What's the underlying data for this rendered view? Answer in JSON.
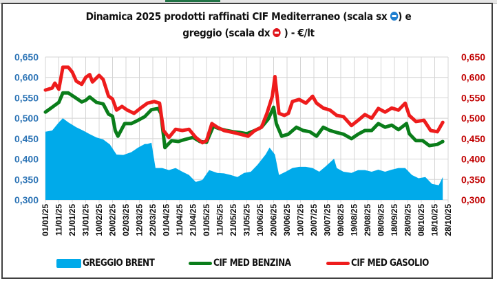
{
  "chart_data": {
    "type": "area+line",
    "title_line1": "Dinamica 2025 prodotti raffinati CIF Mediterraneo (scala sx",
    "title_line1_end": ") e",
    "title_line2": "greggio (scala dx",
    "title_line2_end": ") - €/lt",
    "title_icons": [
      "left-arrow-circle-icon",
      "right-arrow-circle-icon"
    ],
    "y_left": {
      "ticks": [
        "0,300",
        "0,350",
        "0,400",
        "0,450",
        "0,500",
        "0,550",
        "0,600",
        "0,650"
      ],
      "range": [
        0.3,
        0.65
      ],
      "color": "#2e75b6"
    },
    "y_right": {
      "ticks": [
        "0,300",
        "0,350",
        "0,400",
        "0,450",
        "0,500",
        "0,550",
        "0,600",
        "0,650"
      ],
      "range": [
        0.3,
        0.65
      ],
      "color": "#c00000"
    },
    "x_ticks": [
      "01/01/25",
      "11/01/25",
      "21/01/25",
      "31/01/25",
      "10/02/25",
      "20/02/25",
      "02/03/25",
      "12/03/25",
      "22/03/25",
      "01/04/25",
      "11/04/25",
      "21/04/25",
      "01/05/25",
      "11/05/25",
      "21/05/25",
      "31/05/25",
      "10/06/25",
      "20/06/25",
      "30/06/25",
      "10/07/25",
      "20/07/25",
      "30/07/25",
      "09/08/25",
      "19/08/25",
      "29/08/25",
      "08/09/25",
      "18/09/25",
      "28/09/25",
      "08/10/25",
      "18/10/25",
      "28/10/25"
    ],
    "x_range_days": [
      0,
      300
    ],
    "grid": true,
    "legend_position": "bottom",
    "series": [
      {
        "name": "GREGGIO BRENT",
        "kind": "area",
        "axis": "right",
        "color": "#00aaea",
        "points": [
          [
            0,
            0.467
          ],
          [
            5,
            0.47
          ],
          [
            10,
            0.49
          ],
          [
            13,
            0.5
          ],
          [
            17,
            0.49
          ],
          [
            23,
            0.478
          ],
          [
            28,
            0.47
          ],
          [
            33,
            0.461
          ],
          [
            38,
            0.453
          ],
          [
            43,
            0.448
          ],
          [
            48,
            0.436
          ],
          [
            53,
            0.411
          ],
          [
            58,
            0.41
          ],
          [
            64,
            0.417
          ],
          [
            69,
            0.428
          ],
          [
            74,
            0.437
          ],
          [
            76,
            0.437
          ],
          [
            79,
            0.44
          ],
          [
            82,
            0.378
          ],
          [
            87,
            0.378
          ],
          [
            92,
            0.373
          ],
          [
            97,
            0.378
          ],
          [
            102,
            0.369
          ],
          [
            107,
            0.361
          ],
          [
            112,
            0.344
          ],
          [
            117,
            0.349
          ],
          [
            122,
            0.373
          ],
          [
            128,
            0.366
          ],
          [
            133,
            0.365
          ],
          [
            138,
            0.361
          ],
          [
            143,
            0.356
          ],
          [
            148,
            0.366
          ],
          [
            153,
            0.369
          ],
          [
            158,
            0.386
          ],
          [
            164,
            0.411
          ],
          [
            167,
            0.428
          ],
          [
            171,
            0.411
          ],
          [
            174,
            0.361
          ],
          [
            179,
            0.369
          ],
          [
            184,
            0.378
          ],
          [
            189,
            0.381
          ],
          [
            194,
            0.381
          ],
          [
            199,
            0.378
          ],
          [
            204,
            0.369
          ],
          [
            209,
            0.383
          ],
          [
            215,
            0.401
          ],
          [
            217,
            0.378
          ],
          [
            222,
            0.369
          ],
          [
            228,
            0.366
          ],
          [
            233,
            0.373
          ],
          [
            238,
            0.373
          ],
          [
            243,
            0.369
          ],
          [
            248,
            0.374
          ],
          [
            253,
            0.369
          ],
          [
            258,
            0.374
          ],
          [
            263,
            0.378
          ],
          [
            268,
            0.378
          ],
          [
            273,
            0.361
          ],
          [
            278,
            0.353
          ],
          [
            283,
            0.356
          ],
          [
            288,
            0.339
          ],
          [
            293,
            0.336
          ],
          [
            296,
            0.356
          ]
        ]
      },
      {
        "name": "CIF MED BENZINA",
        "kind": "line",
        "axis": "left",
        "color": "#0a7d1a",
        "points": [
          [
            0,
            0.515
          ],
          [
            5,
            0.527
          ],
          [
            10,
            0.539
          ],
          [
            13,
            0.562
          ],
          [
            17,
            0.562
          ],
          [
            23,
            0.549
          ],
          [
            27,
            0.54
          ],
          [
            30,
            0.544
          ],
          [
            33,
            0.552
          ],
          [
            38,
            0.539
          ],
          [
            43,
            0.535
          ],
          [
            47,
            0.51
          ],
          [
            50,
            0.505
          ],
          [
            52,
            0.47
          ],
          [
            54,
            0.456
          ],
          [
            59,
            0.487
          ],
          [
            64,
            0.487
          ],
          [
            69,
            0.495
          ],
          [
            74,
            0.504
          ],
          [
            79,
            0.521
          ],
          [
            84,
            0.524
          ],
          [
            86,
            0.512
          ],
          [
            89,
            0.428
          ],
          [
            94,
            0.445
          ],
          [
            99,
            0.443
          ],
          [
            104,
            0.448
          ],
          [
            110,
            0.453
          ],
          [
            115,
            0.443
          ],
          [
            120,
            0.441
          ],
          [
            125,
            0.48
          ],
          [
            130,
            0.474
          ],
          [
            135,
            0.47
          ],
          [
            140,
            0.467
          ],
          [
            145,
            0.465
          ],
          [
            150,
            0.462
          ],
          [
            156,
            0.47
          ],
          [
            161,
            0.478
          ],
          [
            166,
            0.498
          ],
          [
            170,
            0.527
          ],
          [
            172,
            0.487
          ],
          [
            176,
            0.456
          ],
          [
            181,
            0.461
          ],
          [
            187,
            0.478
          ],
          [
            192,
            0.47
          ],
          [
            197,
            0.467
          ],
          [
            202,
            0.456
          ],
          [
            207,
            0.478
          ],
          [
            212,
            0.47
          ],
          [
            217,
            0.465
          ],
          [
            222,
            0.461
          ],
          [
            228,
            0.45
          ],
          [
            233,
            0.461
          ],
          [
            238,
            0.47
          ],
          [
            243,
            0.47
          ],
          [
            248,
            0.487
          ],
          [
            253,
            0.478
          ],
          [
            258,
            0.483
          ],
          [
            263,
            0.472
          ],
          [
            269,
            0.487
          ],
          [
            271,
            0.462
          ],
          [
            276,
            0.445
          ],
          [
            281,
            0.445
          ],
          [
            286,
            0.433
          ],
          [
            292,
            0.436
          ],
          [
            296,
            0.443
          ]
        ]
      },
      {
        "name": "CIF MED GASOLIO",
        "kind": "line",
        "axis": "right",
        "color": "#ee1c1c",
        "points": [
          [
            0,
            0.569
          ],
          [
            5,
            0.574
          ],
          [
            7,
            0.586
          ],
          [
            10,
            0.571
          ],
          [
            13,
            0.625
          ],
          [
            17,
            0.625
          ],
          [
            20,
            0.613
          ],
          [
            23,
            0.591
          ],
          [
            27,
            0.583
          ],
          [
            30,
            0.6
          ],
          [
            33,
            0.607
          ],
          [
            35,
            0.589
          ],
          [
            40,
            0.605
          ],
          [
            43,
            0.595
          ],
          [
            47,
            0.554
          ],
          [
            50,
            0.547
          ],
          [
            53,
            0.52
          ],
          [
            57,
            0.529
          ],
          [
            61,
            0.52
          ],
          [
            66,
            0.512
          ],
          [
            71,
            0.525
          ],
          [
            76,
            0.537
          ],
          [
            81,
            0.541
          ],
          [
            85,
            0.537
          ],
          [
            88,
            0.47
          ],
          [
            92,
            0.453
          ],
          [
            97,
            0.473
          ],
          [
            102,
            0.47
          ],
          [
            107,
            0.473
          ],
          [
            112,
            0.453
          ],
          [
            117,
            0.44
          ],
          [
            120,
            0.445
          ],
          [
            124,
            0.487
          ],
          [
            128,
            0.478
          ],
          [
            133,
            0.47
          ],
          [
            140,
            0.465
          ],
          [
            145,
            0.461
          ],
          [
            151,
            0.456
          ],
          [
            156,
            0.47
          ],
          [
            161,
            0.478
          ],
          [
            165,
            0.512
          ],
          [
            169,
            0.554
          ],
          [
            171,
            0.602
          ],
          [
            174,
            0.512
          ],
          [
            178,
            0.507
          ],
          [
            181,
            0.512
          ],
          [
            184,
            0.541
          ],
          [
            189,
            0.546
          ],
          [
            194,
            0.537
          ],
          [
            199,
            0.554
          ],
          [
            202,
            0.537
          ],
          [
            207,
            0.525
          ],
          [
            212,
            0.52
          ],
          [
            217,
            0.507
          ],
          [
            222,
            0.504
          ],
          [
            228,
            0.482
          ],
          [
            233,
            0.495
          ],
          [
            238,
            0.509
          ],
          [
            243,
            0.5
          ],
          [
            248,
            0.524
          ],
          [
            253,
            0.515
          ],
          [
            258,
            0.525
          ],
          [
            263,
            0.52
          ],
          [
            268,
            0.537
          ],
          [
            271,
            0.507
          ],
          [
            276,
            0.492
          ],
          [
            282,
            0.495
          ],
          [
            287,
            0.47
          ],
          [
            292,
            0.467
          ],
          [
            296,
            0.49
          ]
        ]
      }
    ]
  },
  "legend": [
    {
      "label": "GREGGIO BRENT",
      "swatch": "area",
      "color": "#00aaea"
    },
    {
      "label": "CIF MED BENZINA",
      "swatch": "line",
      "color": "#0a7d1a"
    },
    {
      "label": "CIF MED GASOLIO",
      "swatch": "line",
      "color": "#ee1c1c"
    }
  ]
}
